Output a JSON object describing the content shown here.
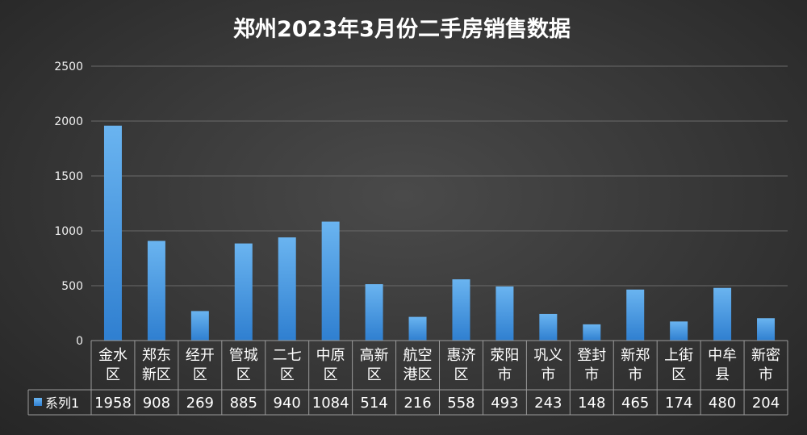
{
  "chart_data": {
    "type": "bar",
    "title": "郑州2023年3月份二手房销售数据",
    "categories": [
      [
        "金水",
        "区"
      ],
      [
        "郑东",
        "新区"
      ],
      [
        "经开",
        "区"
      ],
      [
        "管城",
        "区"
      ],
      [
        "二七",
        "区"
      ],
      [
        "中原",
        "区"
      ],
      [
        "高新",
        "区"
      ],
      [
        "航空",
        "港区"
      ],
      [
        "惠济",
        "区"
      ],
      [
        "荥阳",
        "市"
      ],
      [
        "巩义",
        "市"
      ],
      [
        "登封",
        "市"
      ],
      [
        "新郑",
        "市"
      ],
      [
        "上街",
        "区"
      ],
      [
        "中牟",
        "县"
      ],
      [
        "新密",
        "市"
      ]
    ],
    "series": [
      {
        "name": "系列1",
        "values": [
          1958,
          908,
          269,
          885,
          940,
          1084,
          514,
          216,
          558,
          493,
          243,
          148,
          465,
          174,
          480,
          204
        ]
      }
    ],
    "yticks": [
      "0",
      "500",
      "1000",
      "1500",
      "2000",
      "2500"
    ],
    "ylim": [
      0,
      2500
    ],
    "grid": true,
    "legend": "data-table",
    "colors": {
      "bar_top": "#6ab4f0",
      "bar_bottom": "#2f7fd0"
    }
  }
}
